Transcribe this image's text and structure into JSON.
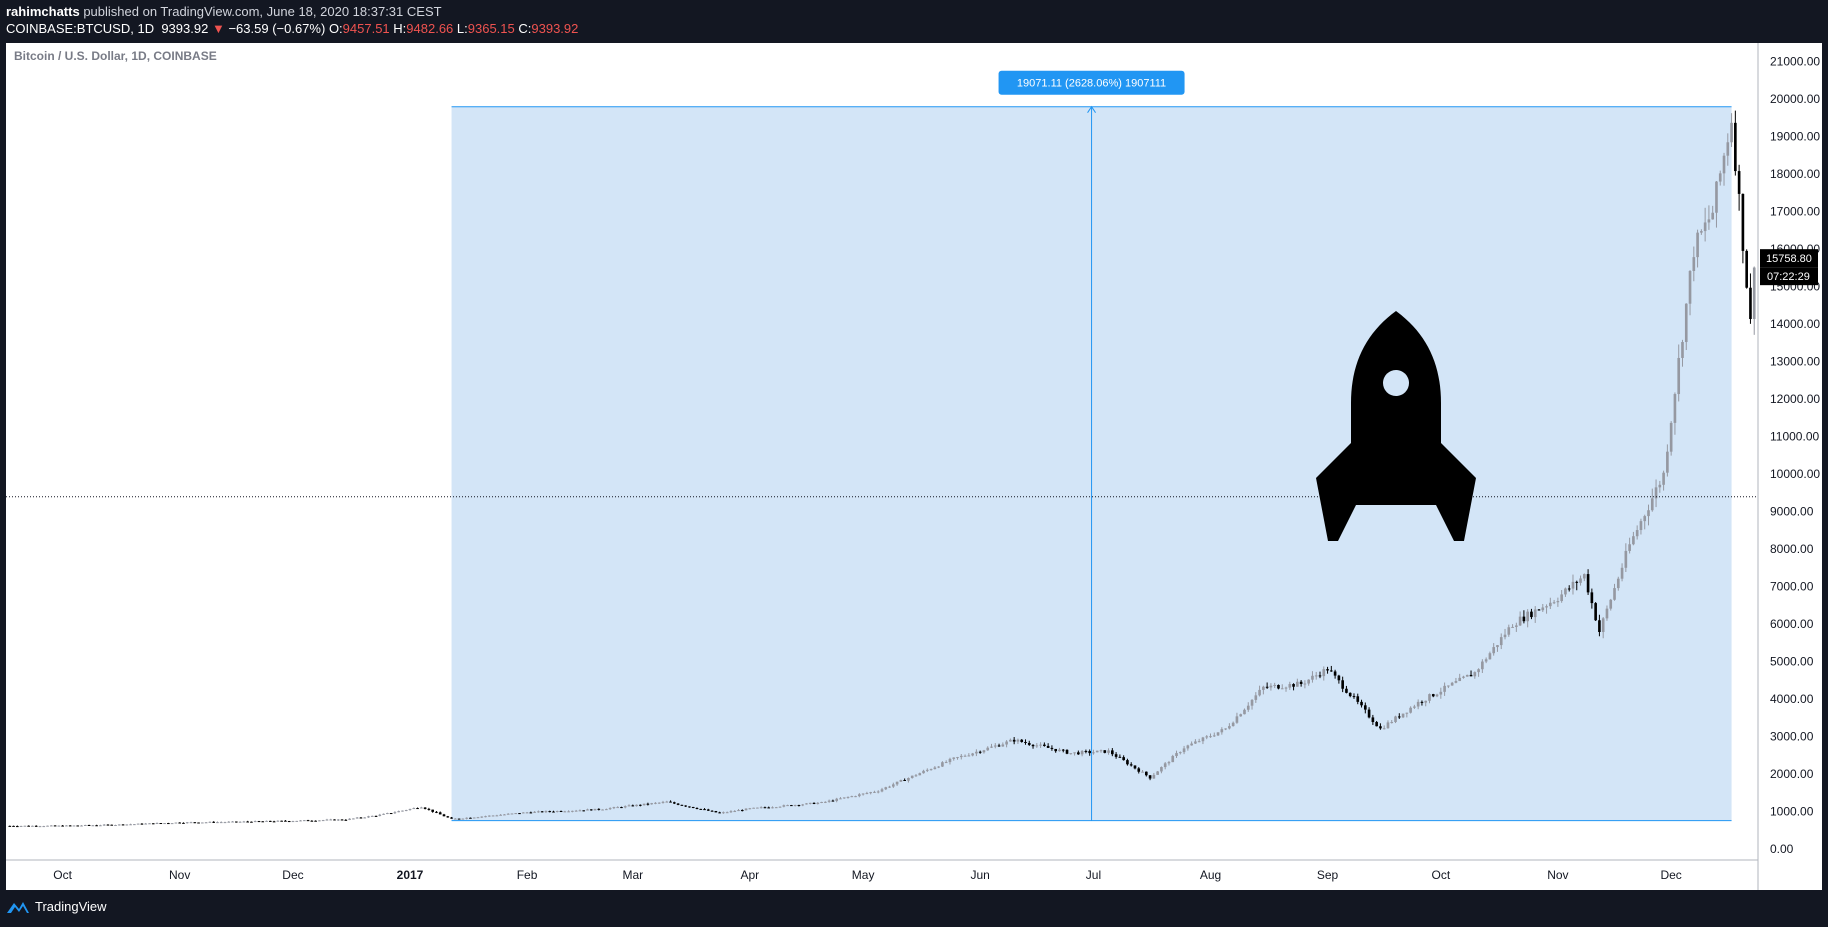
{
  "header": {
    "author": "rahimchatts",
    "publish_text": "published on TradingView.com, June 18, 2020 18:37:31 CEST",
    "symbol": "COINBASE:BTCUSD, 1D",
    "last_price": "9393.92",
    "change_arrow": "▼",
    "change": "−63.59 (−0.67%)",
    "open_label": "O:",
    "open": "9457.51",
    "high_label": "H:",
    "high": "9482.66",
    "low_label": "L:",
    "low": "9365.15",
    "close_label": "C:",
    "close": "9393.92",
    "negative_color": "#ef5350"
  },
  "chart_data": {
    "type": "candlestick",
    "title": "Bitcoin / U.S. Dollar, 1D, COINBASE",
    "x_ticks": [
      "Oct",
      "Nov",
      "Dec",
      "2017",
      "Feb",
      "Mar",
      "Apr",
      "May",
      "Jun",
      "Jul",
      "Aug",
      "Sep",
      "Oct",
      "Nov",
      "Dec"
    ],
    "y_ticks": [
      "21000.00",
      "20000.00",
      "19000.00",
      "18000.00",
      "17000.00",
      "16000.00",
      "15000.00",
      "14000.00",
      "13000.00",
      "12000.00",
      "11000.00",
      "10000.00",
      "9000.00",
      "8000.00",
      "7000.00",
      "6000.00",
      "5000.00",
      "4000.00",
      "3000.00",
      "2000.00",
      "1000.00",
      "0.00"
    ],
    "ylim": [
      -300,
      21500
    ],
    "series": [
      {
        "price_path": [
          [
            "2016-09-17",
            610
          ],
          [
            "2016-10-01",
            612
          ],
          [
            "2016-10-15",
            640
          ],
          [
            "2016-11-01",
            700
          ],
          [
            "2016-11-15",
            715
          ],
          [
            "2016-12-01",
            745
          ],
          [
            "2016-12-15",
            780
          ],
          [
            "2016-12-24",
            900
          ],
          [
            "2017-01-04",
            1120
          ],
          [
            "2017-01-12",
            790
          ],
          [
            "2017-02-01",
            970
          ],
          [
            "2017-02-20",
            1050
          ],
          [
            "2017-03-10",
            1250
          ],
          [
            "2017-03-24",
            950
          ],
          [
            "2017-04-01",
            1070
          ],
          [
            "2017-04-20",
            1230
          ],
          [
            "2017-05-05",
            1550
          ],
          [
            "2017-05-25",
            2400
          ],
          [
            "2017-06-10",
            2900
          ],
          [
            "2017-06-25",
            2550
          ],
          [
            "2017-07-05",
            2600
          ],
          [
            "2017-07-16",
            1900
          ],
          [
            "2017-07-25",
            2700
          ],
          [
            "2017-08-05",
            3200
          ],
          [
            "2017-08-15",
            4300
          ],
          [
            "2017-08-25",
            4400
          ],
          [
            "2017-09-01",
            4800
          ],
          [
            "2017-09-15",
            3200
          ],
          [
            "2017-09-25",
            3900
          ],
          [
            "2017-10-10",
            4700
          ],
          [
            "2017-10-20",
            6000
          ],
          [
            "2017-11-01",
            6700
          ],
          [
            "2017-11-08",
            7300
          ],
          [
            "2017-11-12",
            5800
          ],
          [
            "2017-11-20",
            8100
          ],
          [
            "2017-11-29",
            10000
          ],
          [
            "2017-12-07",
            16000
          ],
          [
            "2017-12-12",
            17000
          ],
          [
            "2017-12-17",
            19500
          ],
          [
            "2017-12-22",
            14000
          ],
          [
            "2017-12-23",
            15758.8
          ]
        ]
      }
    ],
    "measure_label": "19071.11 (2628.06%) 1907111",
    "measure_from": "2017-01-12",
    "measure_to": "2017-12-17",
    "measure_low": 750,
    "measure_high": 19800,
    "crosshair_price": 9393.92,
    "price_badge": "15758.80",
    "countdown_badge": "07:22:29",
    "measure_color": "#2196f3",
    "measure_fill": "#d3e5f7"
  },
  "footer": {
    "brand": "TradingView",
    "logo_icon": "tradingview-logo-icon"
  },
  "overlay_icon": "rocket-icon"
}
